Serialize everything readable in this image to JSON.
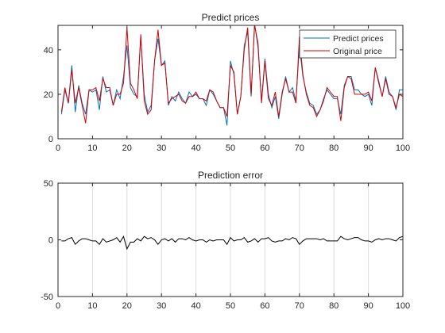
{
  "chart_data": [
    {
      "type": "line",
      "title": "Predict prices",
      "xlabel": "",
      "ylabel": "",
      "xlim": [
        0,
        100
      ],
      "ylim": [
        0,
        51
      ],
      "xticks": [
        "0",
        "10",
        "20",
        "30",
        "40",
        "50",
        "60",
        "70",
        "80",
        "90",
        "100"
      ],
      "yticks": [
        "0",
        "20",
        "40"
      ],
      "grid": false,
      "legend_position": "top-right",
      "series": [
        {
          "name": "Predict prices",
          "color": "#0072BD",
          "values": [
            11,
            22,
            16,
            33,
            12,
            24,
            16,
            11,
            22,
            21,
            22,
            13,
            28,
            21,
            22,
            15,
            22,
            18,
            28,
            42,
            23,
            20,
            19,
            46,
            20,
            12,
            15,
            35,
            45,
            33,
            35,
            15,
            19,
            17,
            21,
            18,
            16,
            21,
            19,
            20,
            18,
            18,
            15,
            22,
            20,
            17,
            14,
            14,
            6,
            35,
            29,
            11,
            19,
            42,
            48,
            19,
            52,
            41,
            17,
            36,
            20,
            14,
            19,
            9,
            20,
            28,
            21,
            23,
            17,
            42,
            28,
            21,
            16,
            15,
            11,
            13,
            18,
            22,
            20,
            18,
            18,
            11,
            24,
            28,
            28,
            22,
            22,
            20,
            19,
            20,
            15,
            32,
            26,
            19,
            28,
            21,
            19,
            13,
            22,
            22
          ]
        },
        {
          "name": "Original price",
          "color": "#D40000",
          "values": [
            12,
            23,
            16,
            31,
            16,
            23,
            15,
            7,
            22,
            22,
            23,
            17,
            27,
            23,
            23,
            15,
            20,
            20,
            25,
            50,
            25,
            22,
            18,
            47,
            17,
            11,
            13,
            35,
            49,
            33,
            34,
            16,
            18,
            19,
            20,
            17,
            16,
            19,
            19,
            21,
            18,
            18,
            17,
            22,
            21,
            17,
            14,
            14,
            10,
            33,
            30,
            11,
            19,
            40,
            50,
            20,
            51,
            43,
            16,
            35,
            18,
            15,
            21,
            10,
            21,
            27,
            21,
            21,
            16,
            46,
            29,
            20,
            15,
            14,
            10,
            13,
            17,
            23,
            21,
            19,
            19,
            8,
            23,
            28,
            27,
            20,
            20,
            20,
            20,
            21,
            17,
            32,
            25,
            19,
            27,
            20,
            19,
            14,
            20,
            19
          ]
        }
      ]
    },
    {
      "type": "line",
      "title": "Prediction error",
      "xlabel": "",
      "ylabel": "",
      "xlim": [
        0,
        100
      ],
      "ylim": [
        -50,
        50
      ],
      "xticks": [
        "0",
        "10",
        "20",
        "30",
        "40",
        "50",
        "60",
        "70",
        "80",
        "90",
        "100"
      ],
      "yticks": [
        "-50",
        "0",
        "50"
      ],
      "grid": "vertical",
      "series": [
        {
          "color": "#000000",
          "values": [
            -1,
            -1,
            1,
            2,
            -4,
            -1,
            1,
            1,
            0,
            -1,
            -1,
            -4,
            1,
            -2,
            -1,
            0,
            2,
            -2,
            3,
            -8,
            -2,
            -2,
            1,
            -1,
            3,
            1,
            2,
            0,
            -4,
            0,
            1,
            -1,
            1,
            -2,
            1,
            1,
            0,
            2,
            0,
            -1,
            0,
            0,
            -2,
            0,
            -1,
            0,
            0,
            0,
            -4,
            2,
            -1,
            0,
            0,
            2,
            -2,
            -1,
            1,
            -2,
            1,
            1,
            2,
            -1,
            -2,
            -1,
            -1,
            1,
            0,
            2,
            1,
            -4,
            -1,
            1,
            1,
            1,
            1,
            0,
            1,
            -1,
            -1,
            -1,
            -1,
            3,
            1,
            0,
            1,
            2,
            2,
            0,
            -1,
            -1,
            -2,
            0,
            1,
            0,
            1,
            1,
            0,
            -1,
            2,
            3
          ]
        }
      ]
    }
  ]
}
